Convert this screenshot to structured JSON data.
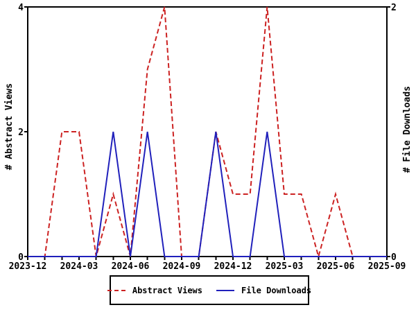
{
  "chart_data": {
    "type": "line",
    "months": [
      "2023-12",
      "2024-01",
      "2024-02",
      "2024-03",
      "2024-04",
      "2024-05",
      "2024-06",
      "2024-07",
      "2024-08",
      "2024-09",
      "2024-10",
      "2024-11",
      "2024-12",
      "2025-01",
      "2025-02",
      "2025-03",
      "2025-04",
      "2025-05",
      "2025-06",
      "2025-07",
      "2025-08",
      "2025-09"
    ],
    "x_label_every": 3,
    "x_tick_labels_shown": [
      "2023-12",
      "2024-03",
      "2024-06",
      "2024-09",
      "2024-12",
      "2025-03",
      "2025-06",
      "2025-09"
    ],
    "series": [
      {
        "name": "Abstract Views",
        "axis": "left",
        "style": "dashed",
        "color": "#cc2222",
        "values": [
          0,
          0,
          2,
          2,
          0,
          1,
          0,
          3,
          4,
          0,
          0,
          2,
          1,
          1,
          4,
          1,
          1,
          0,
          1,
          0,
          0,
          0
        ]
      },
      {
        "name": "File Downloads",
        "axis": "right",
        "style": "solid",
        "color": "#2020bb",
        "values": [
          0,
          0,
          0,
          0,
          0,
          1,
          0,
          1,
          0,
          0,
          0,
          1,
          0,
          0,
          1,
          0,
          0,
          0,
          0,
          0,
          0,
          0
        ]
      }
    ],
    "left_axis": {
      "title": "# Abstract Views",
      "min": 0,
      "max": 4,
      "ticks": [
        0,
        2,
        4
      ]
    },
    "right_axis": {
      "title": "# File Downloads",
      "min": 0,
      "max": 2,
      "ticks": [
        0,
        2
      ]
    },
    "grid": false,
    "legend_position": "bottom",
    "axis_color": "#000000",
    "background_color": "#ffffff"
  }
}
